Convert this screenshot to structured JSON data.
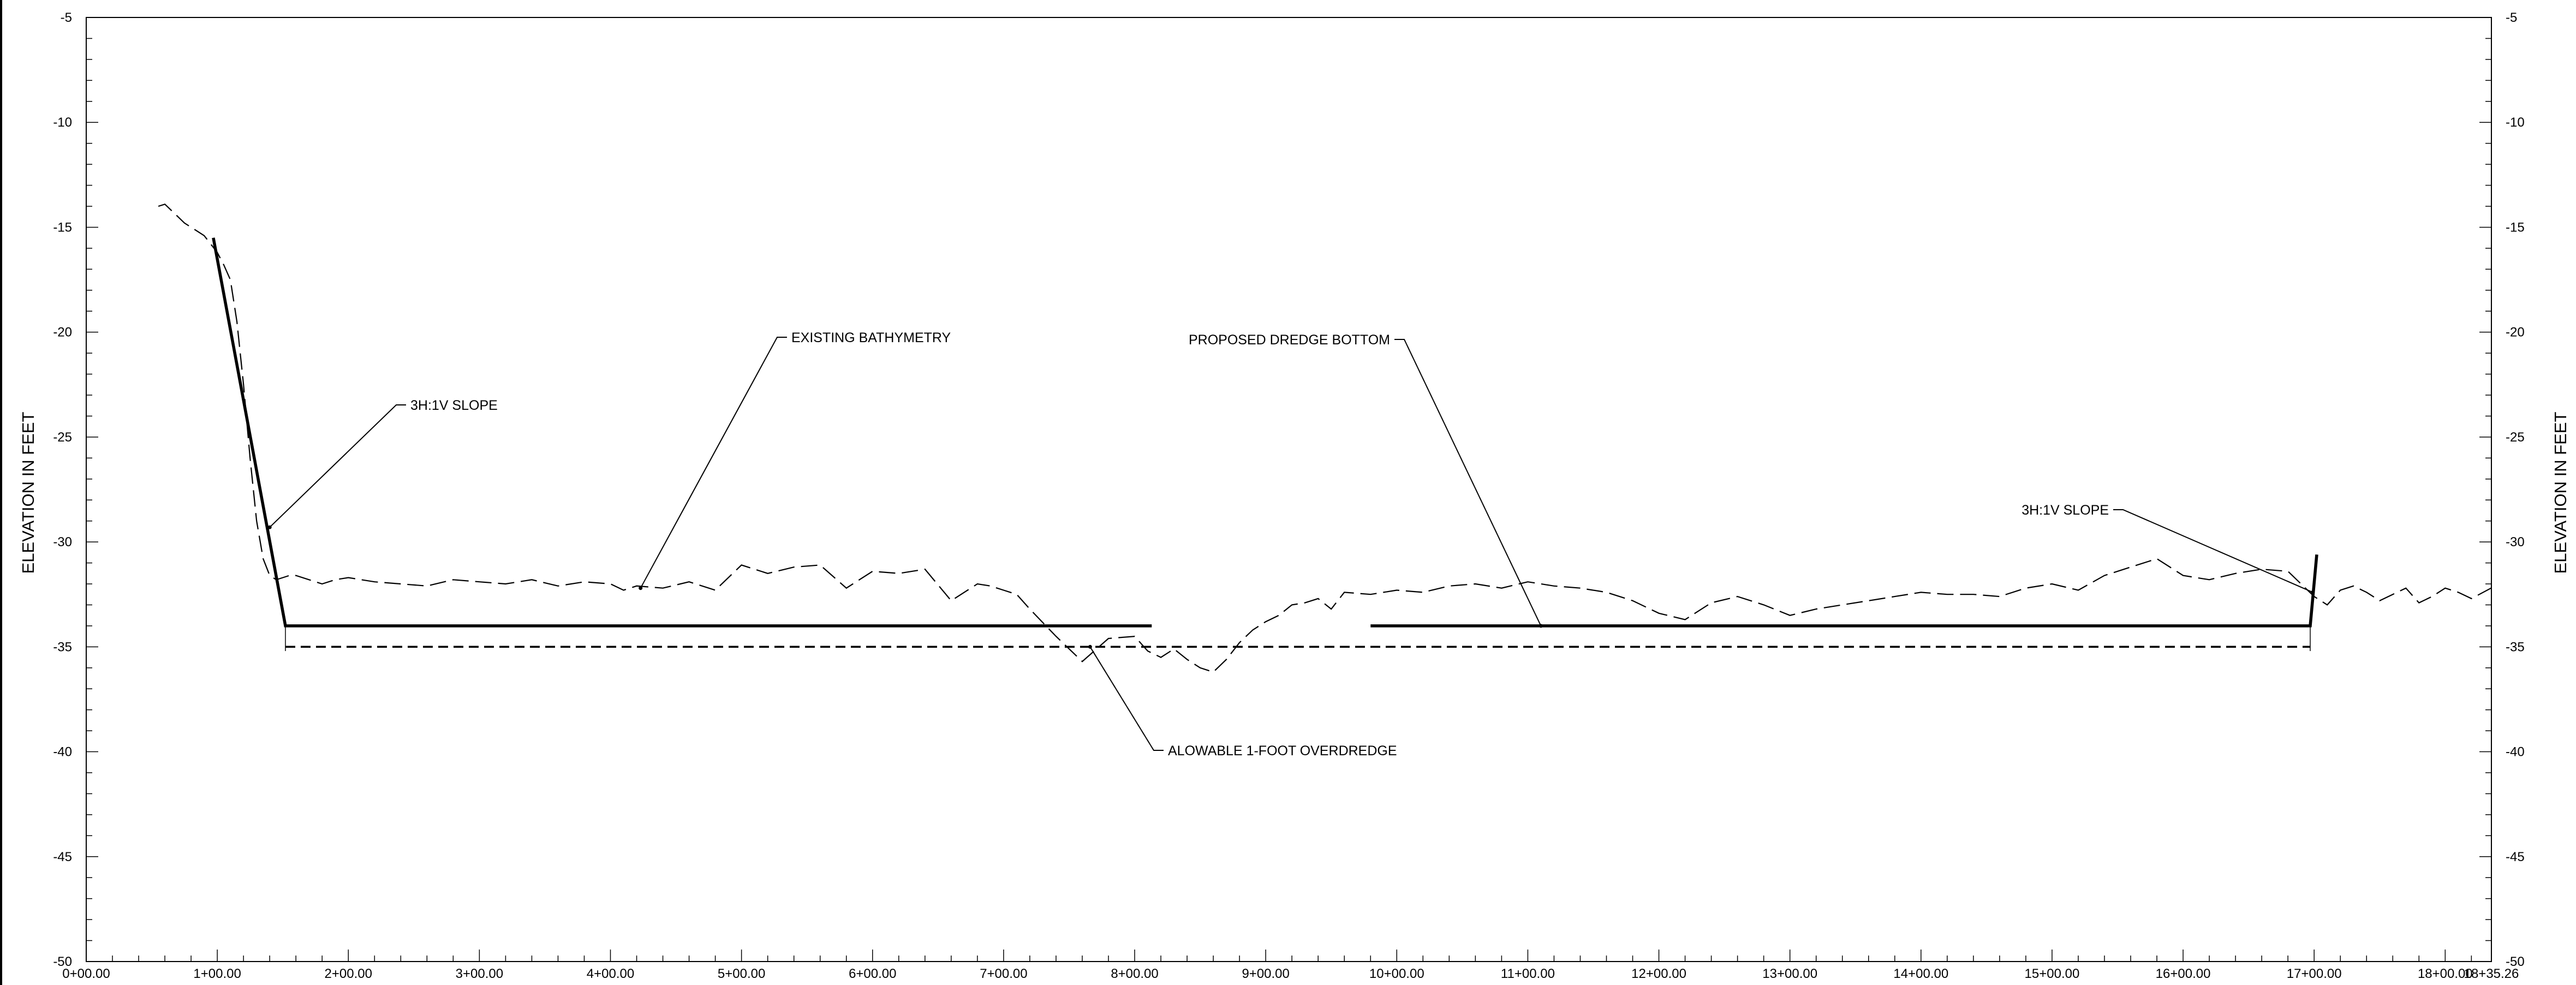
{
  "chart_data": {
    "type": "line",
    "title": "",
    "xlabel": "",
    "ylabel": "ELEVATION IN FEET",
    "ylabel_right": "ELEVATION IN FEET",
    "xlim": [
      0,
      1835.26
    ],
    "ylim": [
      -50,
      -5
    ],
    "grid": false,
    "x_ticks": [
      {
        "value": 0,
        "label": "0+00.00"
      },
      {
        "value": 100,
        "label": "1+00.00"
      },
      {
        "value": 200,
        "label": "2+00.00"
      },
      {
        "value": 300,
        "label": "3+00.00"
      },
      {
        "value": 400,
        "label": "4+00.00"
      },
      {
        "value": 500,
        "label": "5+00.00"
      },
      {
        "value": 600,
        "label": "6+00.00"
      },
      {
        "value": 700,
        "label": "7+00.00"
      },
      {
        "value": 800,
        "label": "8+00.00"
      },
      {
        "value": 900,
        "label": "9+00.00"
      },
      {
        "value": 1000,
        "label": "10+00.00"
      },
      {
        "value": 1100,
        "label": "11+00.00"
      },
      {
        "value": 1200,
        "label": "12+00.00"
      },
      {
        "value": 1300,
        "label": "13+00.00"
      },
      {
        "value": 1400,
        "label": "14+00.00"
      },
      {
        "value": 1500,
        "label": "15+00.00"
      },
      {
        "value": 1600,
        "label": "16+00.00"
      },
      {
        "value": 1700,
        "label": "17+00.00"
      },
      {
        "value": 1800,
        "label": "18+00.00"
      },
      {
        "value": 1835.26,
        "label": "18+35.26"
      }
    ],
    "y_ticks": [
      {
        "value": -5,
        "label": "-5"
      },
      {
        "value": -10,
        "label": "-10"
      },
      {
        "value": -15,
        "label": "-15"
      },
      {
        "value": -20,
        "label": "-20"
      },
      {
        "value": -25,
        "label": "-25"
      },
      {
        "value": -30,
        "label": "-30"
      },
      {
        "value": -35,
        "label": "-35"
      },
      {
        "value": -40,
        "label": "-40"
      },
      {
        "value": -45,
        "label": "-45"
      },
      {
        "value": -50,
        "label": "-50"
      }
    ],
    "series": [
      {
        "name": "EXISTING BATHYMETRY",
        "style": "dashed-thin",
        "x": [
          55,
          60,
          65,
          70,
          75,
          80,
          85,
          90,
          95,
          100,
          105,
          110,
          115,
          120,
          125,
          130,
          135,
          140,
          145,
          150,
          155,
          160,
          170,
          180,
          190,
          200,
          220,
          240,
          260,
          280,
          300,
          320,
          340,
          360,
          380,
          400,
          410,
          420,
          440,
          460,
          480,
          500,
          520,
          540,
          560,
          580,
          600,
          620,
          640,
          660,
          680,
          690,
          700,
          710,
          720,
          740,
          760,
          780,
          800,
          810,
          820,
          830,
          840,
          850,
          860,
          870,
          880,
          890,
          900,
          910,
          920,
          930,
          940,
          950,
          960,
          980,
          1000,
          1020,
          1040,
          1060,
          1080,
          1100,
          1120,
          1140,
          1160,
          1180,
          1200,
          1220,
          1240,
          1260,
          1280,
          1300,
          1320,
          1340,
          1360,
          1380,
          1400,
          1420,
          1440,
          1460,
          1480,
          1500,
          1520,
          1540,
          1560,
          1580,
          1600,
          1620,
          1640,
          1660,
          1680,
          1690,
          1700,
          1710,
          1720,
          1730,
          1740,
          1750,
          1760,
          1770,
          1780,
          1790,
          1800,
          1810,
          1820,
          1835
        ],
        "y": [
          -14.0,
          -13.9,
          -14.2,
          -14.5,
          -14.8,
          -15.0,
          -15.2,
          -15.4,
          -15.8,
          -16.2,
          -16.8,
          -17.5,
          -19.5,
          -22.5,
          -26.0,
          -29.0,
          -30.8,
          -31.6,
          -31.8,
          -31.7,
          -31.6,
          -31.6,
          -31.8,
          -32.0,
          -31.8,
          -31.7,
          -31.9,
          -32.0,
          -32.1,
          -31.8,
          -31.9,
          -32.0,
          -31.8,
          -32.1,
          -31.9,
          -32.0,
          -32.3,
          -32.1,
          -32.2,
          -31.9,
          -32.3,
          -31.1,
          -31.5,
          -31.2,
          -31.1,
          -32.2,
          -31.4,
          -31.5,
          -31.3,
          -32.8,
          -32.0,
          -32.1,
          -32.3,
          -32.5,
          -33.2,
          -34.5,
          -35.7,
          -34.6,
          -34.5,
          -35.2,
          -35.5,
          -35.1,
          -35.6,
          -36.0,
          -36.2,
          -35.6,
          -34.8,
          -34.2,
          -33.8,
          -33.5,
          -33.0,
          -32.9,
          -32.7,
          -33.2,
          -32.4,
          -32.5,
          -32.3,
          -32.4,
          -32.1,
          -32.0,
          -32.2,
          -31.9,
          -32.1,
          -32.2,
          -32.4,
          -32.8,
          -33.4,
          -33.7,
          -32.9,
          -32.6,
          -33.0,
          -33.5,
          -33.2,
          -33.0,
          -32.8,
          -32.6,
          -32.4,
          -32.5,
          -32.5,
          -32.6,
          -32.2,
          -32.0,
          -32.3,
          -31.6,
          -31.2,
          -30.8,
          -31.6,
          -31.8,
          -31.5,
          -31.3,
          -31.4,
          -32.0,
          -32.6,
          -33.0,
          -32.3,
          -32.1,
          -32.4,
          -32.8,
          -32.5,
          -32.2,
          -32.9,
          -32.6,
          -32.2,
          -32.4,
          -32.7,
          -32.2
        ]
      },
      {
        "name": "PROPOSED DREDGE BOTTOM",
        "style": "solid-thick",
        "x": [
          97,
          152,
          801,
          813
        ],
        "y": [
          -15.5,
          -34.0,
          -34.0,
          -34.0
        ]
      },
      {
        "name": "PROPOSED DREDGE BOTTOM",
        "style": "solid-thick",
        "x": [
          980,
          1004,
          1697,
          1702
        ],
        "y": [
          -34.0,
          -34.0,
          -34.0,
          -30.6
        ]
      },
      {
        "name": "ALOWABLE 1-FOOT OVERDREDGE",
        "style": "dashed-thick",
        "x": [
          152,
          1697
        ],
        "y": [
          -35.0,
          -35.0
        ]
      }
    ],
    "annotations": [
      {
        "text": "3H:1V SLOPE",
        "target": [
          140,
          -29.3
        ],
        "anchor": "left-upper"
      },
      {
        "text": "EXISTING BATHYMETRY",
        "target": [
          423,
          -32.2
        ],
        "anchor": "center-upper"
      },
      {
        "text": "PROPOSED DREDGE BOTTOM",
        "target": [
          1110,
          -34.0
        ],
        "anchor": "center-upper"
      },
      {
        "text": "ALOWABLE 1-FOOT OVERDREDGE",
        "target": [
          766,
          -35.0
        ],
        "anchor": "center-lower"
      },
      {
        "text": "3H:1V SLOPE",
        "target": [
          1699,
          -32.4
        ],
        "anchor": "right-upper"
      }
    ]
  }
}
